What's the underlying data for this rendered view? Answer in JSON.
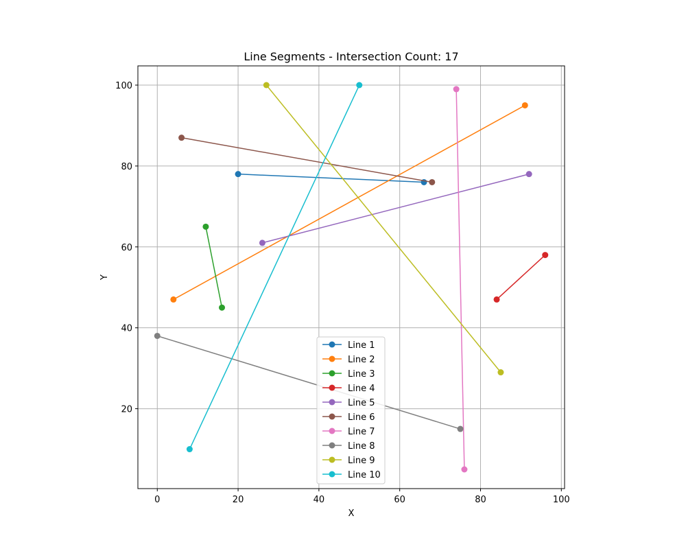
{
  "chart_data": {
    "type": "line",
    "title": "Line Segments - Intersection Count: 17",
    "xlabel": "X",
    "ylabel": "Y",
    "xlim": [
      -4.8,
      100.8
    ],
    "ylim": [
      0.25,
      104.75
    ],
    "xticks": [
      0,
      20,
      40,
      60,
      80,
      100
    ],
    "yticks": [
      20,
      40,
      60,
      80,
      100
    ],
    "grid": true,
    "legend_position": "lower-center",
    "series": [
      {
        "name": "Line 1",
        "color": "#1f77b4",
        "points": [
          [
            20,
            78
          ],
          [
            66,
            76
          ]
        ]
      },
      {
        "name": "Line 2",
        "color": "#ff7f0e",
        "points": [
          [
            4,
            47
          ],
          [
            91,
            95
          ]
        ]
      },
      {
        "name": "Line 3",
        "color": "#2ca02c",
        "points": [
          [
            12,
            65
          ],
          [
            16,
            45
          ]
        ]
      },
      {
        "name": "Line 4",
        "color": "#d62728",
        "points": [
          [
            84,
            47
          ],
          [
            96,
            58
          ]
        ]
      },
      {
        "name": "Line 5",
        "color": "#9467bd",
        "points": [
          [
            26,
            61
          ],
          [
            92,
            78
          ]
        ]
      },
      {
        "name": "Line 6",
        "color": "#8c564b",
        "points": [
          [
            6,
            87
          ],
          [
            68,
            76
          ]
        ]
      },
      {
        "name": "Line 7",
        "color": "#e377c2",
        "points": [
          [
            74,
            99
          ],
          [
            76,
            5
          ]
        ]
      },
      {
        "name": "Line 8",
        "color": "#7f7f7f",
        "points": [
          [
            0,
            38
          ],
          [
            75,
            15
          ]
        ]
      },
      {
        "name": "Line 9",
        "color": "#bcbd22",
        "points": [
          [
            27,
            100
          ],
          [
            85,
            29
          ]
        ]
      },
      {
        "name": "Line 10",
        "color": "#17becf",
        "points": [
          [
            8,
            10
          ],
          [
            50,
            100
          ]
        ]
      }
    ]
  }
}
